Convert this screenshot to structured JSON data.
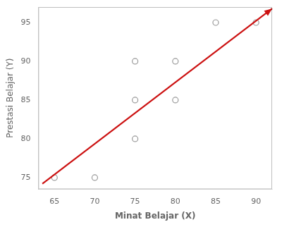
{
  "chart_data": {
    "type": "scatter",
    "xlabel": "Minat Belajar (X)",
    "ylabel": "Prestasi Belajar (Y)",
    "xlim": [
      63,
      92
    ],
    "ylim": [
      73.5,
      97
    ],
    "xticks": [
      65,
      70,
      75,
      80,
      85,
      90
    ],
    "yticks": [
      75,
      80,
      85,
      90,
      95
    ],
    "grid": false,
    "series": [
      {
        "type": "scatter",
        "marker": "open_circle",
        "color": "#999999",
        "x": [
          65,
          70,
          75,
          75,
          75,
          80,
          80,
          85,
          90
        ],
        "values": [
          75,
          75,
          90,
          85,
          80,
          90,
          85,
          95,
          95
        ]
      },
      {
        "type": "line",
        "line_style": "arrow",
        "color": "#CC1111",
        "x": [
          63.5,
          92.0
        ],
        "values": [
          74.2,
          96.8
        ]
      }
    ]
  }
}
